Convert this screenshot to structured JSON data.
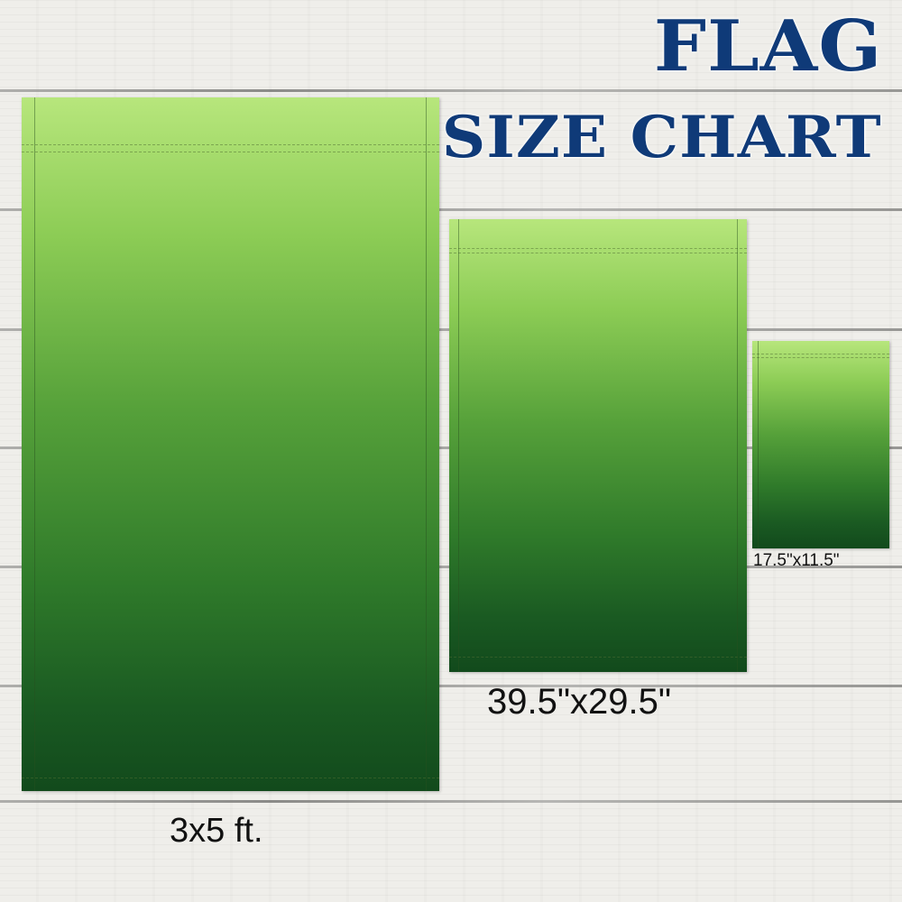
{
  "title": {
    "line1": "FLAG",
    "line2": "SIZE CHART",
    "color": "#0f3a78"
  },
  "flags": [
    {
      "size_label": "3x5 ft."
    },
    {
      "size_label": "39.5\"x29.5\""
    },
    {
      "size_label": "17.5\"x11.5\""
    }
  ],
  "flag_gradient": {
    "top": "#b7e67c",
    "bottom": "#124a1c"
  }
}
